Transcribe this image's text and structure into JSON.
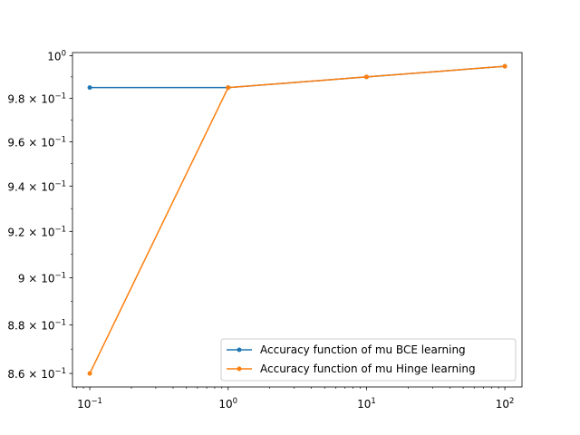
{
  "chart_data": {
    "type": "line",
    "title": "",
    "xlabel": "",
    "ylabel": "",
    "x_scale": "log",
    "y_scale": "log",
    "x": [
      0.1,
      1,
      10,
      100
    ],
    "xlim": [
      0.075,
      133
    ],
    "ylim": [
      0.8545,
      1.0015
    ],
    "x_ticks": [
      {
        "value": 0.1,
        "base": "10",
        "exp": "−1"
      },
      {
        "value": 1,
        "base": "10",
        "exp": "0"
      },
      {
        "value": 10,
        "base": "10",
        "exp": "1"
      },
      {
        "value": 100,
        "base": "10",
        "exp": "2"
      }
    ],
    "y_ticks": [
      {
        "value": 0.86,
        "mant": "8.6",
        "base": "10",
        "exp": "−1"
      },
      {
        "value": 0.88,
        "mant": "8.8",
        "base": "10",
        "exp": "−1"
      },
      {
        "value": 0.9,
        "mant": "9",
        "base": "10",
        "exp": "−1"
      },
      {
        "value": 0.92,
        "mant": "9.2",
        "base": "10",
        "exp": "−1"
      },
      {
        "value": 0.94,
        "mant": "9.4",
        "base": "10",
        "exp": "−1"
      },
      {
        "value": 0.96,
        "mant": "9.6",
        "base": "10",
        "exp": "−1"
      },
      {
        "value": 0.98,
        "mant": "9.8",
        "base": "10",
        "exp": "−1"
      },
      {
        "value": 1.0,
        "mant": "",
        "base": "10",
        "exp": "0"
      }
    ],
    "series": [
      {
        "name": "Accuracy function of mu BCE learning",
        "color": "#1f77b4",
        "values": [
          0.985,
          0.985,
          0.99,
          0.995
        ]
      },
      {
        "name": "Accuracy function of mu Hinge learning",
        "color": "#ff7f0e",
        "values": [
          0.86,
          0.985,
          0.99,
          0.995
        ]
      }
    ],
    "legend_position": "lower-right",
    "grid": false
  }
}
